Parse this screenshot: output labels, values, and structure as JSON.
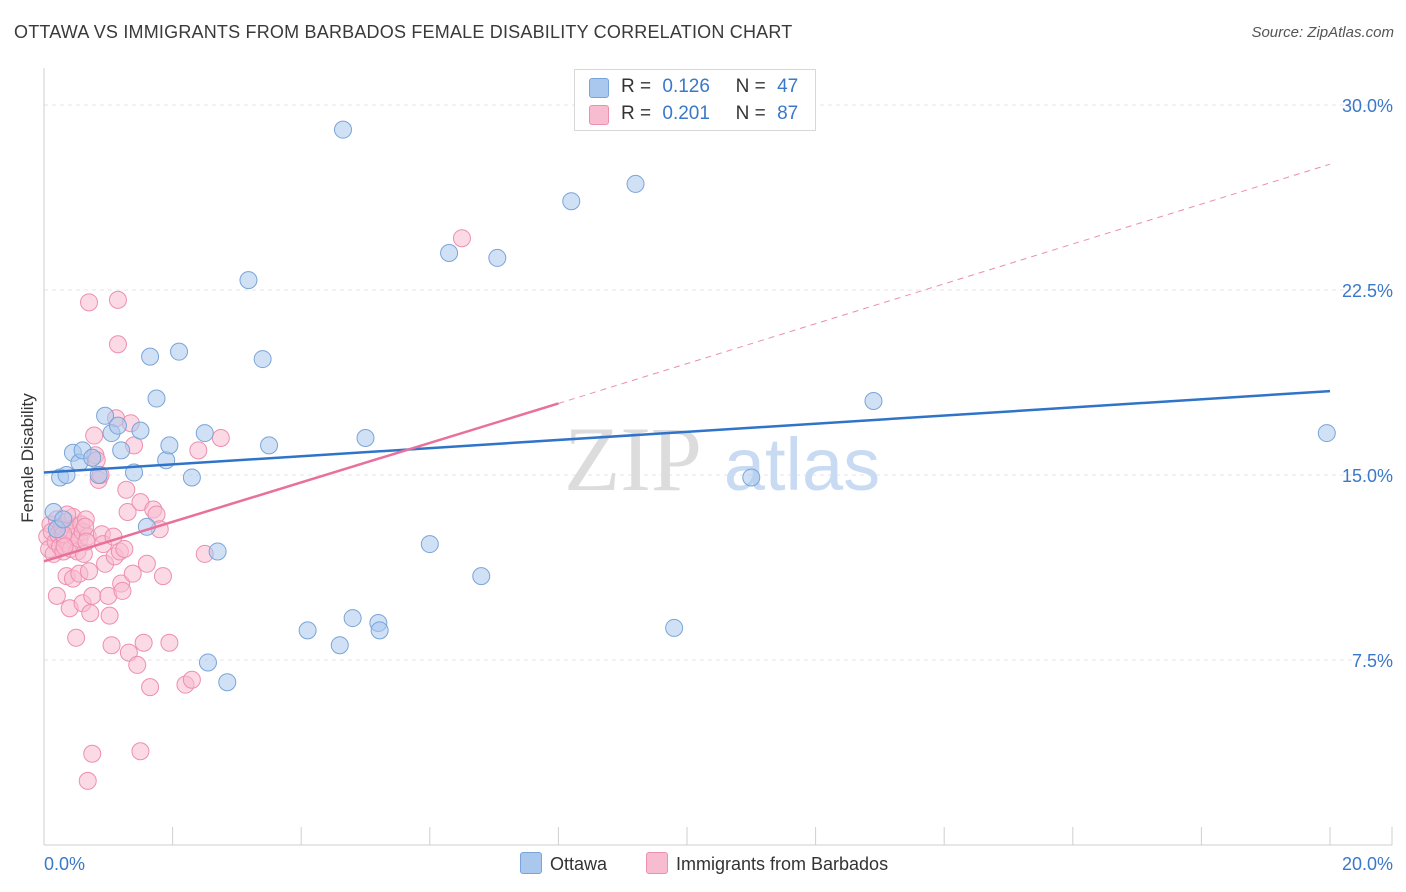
{
  "title": "OTTAWA VS IMMIGRANTS FROM BARBADOS FEMALE DISABILITY CORRELATION CHART",
  "source": "Source: ZipAtlas.com",
  "watermark": {
    "zip": "ZIP",
    "atlas": "atlas"
  },
  "colors": {
    "blue_fill": "#aac8ee",
    "blue_stroke": "#7aa4d8",
    "blue_line": "#2f74c8",
    "pink_fill": "#f7bccf",
    "pink_stroke": "#ee8fae",
    "pink_line": "#e8709a",
    "axis_text": "#3a78c9",
    "grid": "#e4e4e4"
  },
  "legend": {
    "rows": [
      {
        "r_label": "R =",
        "r_value": "0.126",
        "n_label": "N =",
        "n_value": "47"
      },
      {
        "r_label": "R =",
        "r_value": "0.201",
        "n_label": "N =",
        "n_value": "87"
      }
    ]
  },
  "bottom_legend": [
    "Ottawa",
    "Immigrants from Barbados"
  ],
  "chart_data": {
    "type": "scatter",
    "title": "OTTAWA VS IMMIGRANTS FROM BARBADOS FEMALE DISABILITY CORRELATION CHART",
    "xlabel": "",
    "ylabel": "Female Disability",
    "xlim": [
      0,
      20
    ],
    "ylim": [
      0,
      31.5
    ],
    "x_tick_labels": [
      "0.0%",
      "20.0%"
    ],
    "y_ticks": [
      7.5,
      15.0,
      22.5,
      30.0
    ],
    "y_tick_labels": [
      "7.5%",
      "15.0%",
      "22.5%",
      "30.0%"
    ],
    "series": [
      {
        "name": "Ottawa",
        "r": 0.126,
        "n": 47,
        "trend": {
          "x0": 0,
          "y0": 15.1,
          "x1": 20,
          "y1": 18.4,
          "dashed_from": null
        },
        "points": [
          [
            0.15,
            13.5
          ],
          [
            0.25,
            14.9
          ],
          [
            0.35,
            15.0
          ],
          [
            0.45,
            15.9
          ],
          [
            0.55,
            15.5
          ],
          [
            0.6,
            16.0
          ],
          [
            0.75,
            15.7
          ],
          [
            0.85,
            15.0
          ],
          [
            0.95,
            17.4
          ],
          [
            1.05,
            16.7
          ],
          [
            1.15,
            17.0
          ],
          [
            1.2,
            16.0
          ],
          [
            1.4,
            15.1
          ],
          [
            1.5,
            16.8
          ],
          [
            1.6,
            12.9
          ],
          [
            1.65,
            19.8
          ],
          [
            1.75,
            18.1
          ],
          [
            1.9,
            15.6
          ],
          [
            1.95,
            16.2
          ],
          [
            2.1,
            20.0
          ],
          [
            2.3,
            14.9
          ],
          [
            2.5,
            16.7
          ],
          [
            2.55,
            7.4
          ],
          [
            2.7,
            11.9
          ],
          [
            2.85,
            6.6
          ],
          [
            3.18,
            22.9
          ],
          [
            3.4,
            19.7
          ],
          [
            3.5,
            16.2
          ],
          [
            4.1,
            8.7
          ],
          [
            4.6,
            8.1
          ],
          [
            4.65,
            29.0
          ],
          [
            4.8,
            9.2
          ],
          [
            5.0,
            16.5
          ],
          [
            5.2,
            9.0
          ],
          [
            5.22,
            8.7
          ],
          [
            6.0,
            12.2
          ],
          [
            6.3,
            24.0
          ],
          [
            6.8,
            10.9
          ],
          [
            7.05,
            23.8
          ],
          [
            8.2,
            26.1
          ],
          [
            9.2,
            26.8
          ],
          [
            9.8,
            8.8
          ],
          [
            11.0,
            14.9
          ],
          [
            12.9,
            18.0
          ],
          [
            19.95,
            16.7
          ],
          [
            0.2,
            12.8
          ],
          [
            0.3,
            13.2
          ]
        ]
      },
      {
        "name": "Immigrants from Barbados",
        "r": 0.201,
        "n": 87,
        "trend": {
          "x0": 0,
          "y0": 11.5,
          "x1": 8.0,
          "y1": 17.9,
          "dashed_to": {
            "x": 20,
            "y": 27.6
          }
        },
        "points": [
          [
            0.05,
            12.5
          ],
          [
            0.08,
            12.0
          ],
          [
            0.1,
            13.0
          ],
          [
            0.12,
            12.7
          ],
          [
            0.15,
            11.8
          ],
          [
            0.18,
            12.3
          ],
          [
            0.2,
            13.2
          ],
          [
            0.22,
            12.6
          ],
          [
            0.25,
            12.1
          ],
          [
            0.28,
            12.9
          ],
          [
            0.3,
            11.9
          ],
          [
            0.32,
            12.4
          ],
          [
            0.35,
            13.1
          ],
          [
            0.38,
            12.2
          ],
          [
            0.4,
            12.8
          ],
          [
            0.42,
            12.0
          ],
          [
            0.45,
            13.3
          ],
          [
            0.48,
            12.5
          ],
          [
            0.5,
            12.9
          ],
          [
            0.52,
            11.9
          ],
          [
            0.55,
            12.4
          ],
          [
            0.58,
            13.0
          ],
          [
            0.6,
            12.7
          ],
          [
            0.2,
            10.1
          ],
          [
            0.35,
            10.9
          ],
          [
            0.4,
            9.6
          ],
          [
            0.45,
            10.8
          ],
          [
            0.5,
            8.4
          ],
          [
            0.55,
            11.0
          ],
          [
            0.6,
            9.8
          ],
          [
            0.65,
            13.2
          ],
          [
            0.68,
            12.5
          ],
          [
            0.7,
            11.1
          ],
          [
            0.72,
            9.4
          ],
          [
            0.75,
            10.1
          ],
          [
            0.78,
            16.6
          ],
          [
            0.8,
            15.8
          ],
          [
            0.82,
            15.6
          ],
          [
            0.85,
            14.8
          ],
          [
            0.88,
            15.0
          ],
          [
            0.9,
            12.6
          ],
          [
            0.92,
            12.2
          ],
          [
            0.95,
            11.4
          ],
          [
            1.0,
            10.1
          ],
          [
            1.02,
            9.3
          ],
          [
            1.05,
            8.1
          ],
          [
            1.08,
            12.5
          ],
          [
            1.1,
            11.7
          ],
          [
            1.12,
            17.3
          ],
          [
            1.15,
            20.3
          ],
          [
            1.18,
            11.9
          ],
          [
            1.2,
            10.6
          ],
          [
            1.22,
            10.3
          ],
          [
            1.25,
            12.0
          ],
          [
            1.28,
            14.4
          ],
          [
            1.3,
            13.5
          ],
          [
            1.32,
            7.8
          ],
          [
            1.35,
            17.1
          ],
          [
            1.38,
            11.0
          ],
          [
            1.4,
            16.2
          ],
          [
            1.45,
            7.3
          ],
          [
            1.5,
            13.9
          ],
          [
            1.55,
            8.2
          ],
          [
            1.6,
            11.4
          ],
          [
            1.65,
            6.4
          ],
          [
            1.7,
            13.6
          ],
          [
            1.75,
            13.4
          ],
          [
            1.8,
            12.8
          ],
          [
            1.85,
            10.9
          ],
          [
            1.95,
            8.2
          ],
          [
            2.2,
            6.5
          ],
          [
            2.3,
            6.7
          ],
          [
            2.4,
            16.0
          ],
          [
            2.5,
            11.8
          ],
          [
            2.75,
            16.5
          ],
          [
            0.7,
            22.0
          ],
          [
            1.15,
            22.1
          ],
          [
            0.75,
            3.7
          ],
          [
            1.5,
            3.8
          ],
          [
            0.68,
            2.6
          ],
          [
            6.5,
            24.6
          ],
          [
            0.3,
            12.6
          ],
          [
            0.32,
            12.1
          ],
          [
            0.36,
            13.4
          ],
          [
            0.62,
            11.8
          ],
          [
            0.64,
            12.9
          ],
          [
            0.66,
            12.3
          ]
        ]
      }
    ]
  }
}
